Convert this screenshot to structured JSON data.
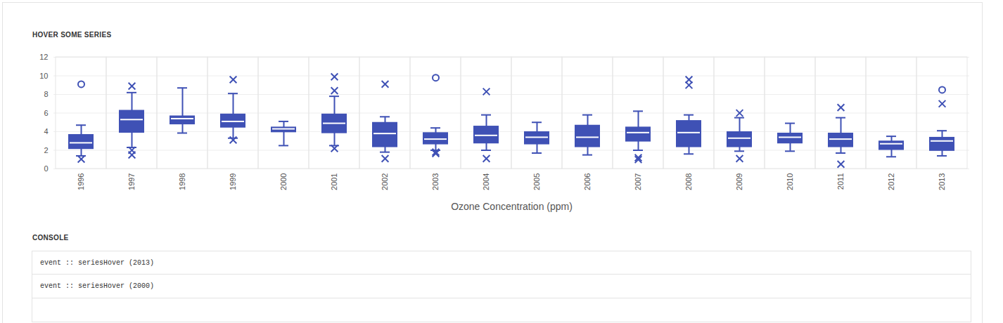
{
  "chart_data": {
    "type": "box",
    "title": "HOVER SOME SERIES",
    "x_label": "Ozone Concentration (ppm)",
    "color": "#3f51b5",
    "grid": true,
    "ylim": [
      0,
      12
    ],
    "yticks": [
      0,
      2,
      4,
      6,
      8,
      10,
      12
    ],
    "categories": [
      "1996",
      "1997",
      "1998",
      "1999",
      "2000",
      "2001",
      "2002",
      "2003",
      "2004",
      "2005",
      "2006",
      "2007",
      "2008",
      "2009",
      "2010",
      "2011",
      "2012",
      "2013"
    ],
    "boxes": [
      {
        "low": 1.4,
        "q1": 2.1,
        "median": 2.8,
        "q3": 3.7,
        "high": 4.7
      },
      {
        "low": 2.3,
        "q1": 3.85,
        "median": 5.3,
        "q3": 6.3,
        "high": 8.2
      },
      {
        "low": 3.85,
        "q1": 4.75,
        "median": 5.4,
        "q3": 5.7,
        "high": 8.7
      },
      {
        "low": 3.3,
        "q1": 4.4,
        "median": 5.1,
        "q3": 5.9,
        "high": 8.1
      },
      {
        "low": 2.5,
        "q1": 3.9,
        "median": 4.3,
        "q3": 4.5,
        "high": 5.1
      },
      {
        "low": 2.5,
        "q1": 3.8,
        "median": 4.9,
        "q3": 5.9,
        "high": 7.8
      },
      {
        "low": 1.8,
        "q1": 2.3,
        "median": 3.8,
        "q3": 5.0,
        "high": 5.6
      },
      {
        "low": 2.0,
        "q1": 2.6,
        "median": 3.2,
        "q3": 3.9,
        "high": 4.4
      },
      {
        "low": 2.0,
        "q1": 2.7,
        "median": 3.6,
        "q3": 4.6,
        "high": 5.8
      },
      {
        "low": 1.7,
        "q1": 2.6,
        "median": 3.4,
        "q3": 4.0,
        "high": 5.0
      },
      {
        "low": 1.5,
        "q1": 2.3,
        "median": 3.4,
        "q3": 4.7,
        "high": 5.8
      },
      {
        "low": 2.0,
        "q1": 2.9,
        "median": 3.9,
        "q3": 4.5,
        "high": 6.2
      },
      {
        "low": 1.6,
        "q1": 2.3,
        "median": 3.9,
        "q3": 5.2,
        "high": 5.8
      },
      {
        "low": 1.9,
        "q1": 2.3,
        "median": 3.3,
        "q3": 4.0,
        "high": 5.5
      },
      {
        "low": 1.9,
        "q1": 2.7,
        "median": 3.4,
        "q3": 3.85,
        "high": 4.9
      },
      {
        "low": 1.7,
        "q1": 2.3,
        "median": 3.2,
        "q3": 3.85,
        "high": 5.5
      },
      {
        "low": 1.3,
        "q1": 2.0,
        "median": 2.7,
        "q3": 3.0,
        "high": 3.5
      },
      {
        "low": 1.4,
        "q1": 1.9,
        "median": 3.0,
        "q3": 3.4,
        "high": 4.1
      }
    ],
    "outliers": {
      "marker": "x",
      "values": [
        [
          1.05
        ],
        [
          8.9,
          2.0,
          1.5
        ],
        [],
        [
          9.6,
          3.1
        ],
        [],
        [
          9.9,
          8.4,
          2.2
        ],
        [
          9.1,
          1.1
        ],
        [
          1.8,
          1.65
        ],
        [
          8.3,
          1.1
        ],
        [],
        [],
        [
          1.2,
          1.0
        ],
        [
          9.6,
          9.0
        ],
        [
          6.0,
          1.1
        ],
        [],
        [
          6.6,
          0.5
        ],
        [],
        [
          7.0
        ]
      ]
    },
    "extremes": {
      "marker": "circle",
      "values": [
        [
          9.1
        ],
        [],
        [],
        [],
        [],
        [],
        [],
        [
          9.8
        ],
        [],
        [],
        [],
        [],
        [],
        [],
        [],
        [],
        [],
        [
          8.5
        ]
      ]
    }
  },
  "console": {
    "title": "CONSOLE",
    "entries": [
      "event :: seriesHover (2013)",
      "event :: seriesHover (2000)"
    ]
  }
}
